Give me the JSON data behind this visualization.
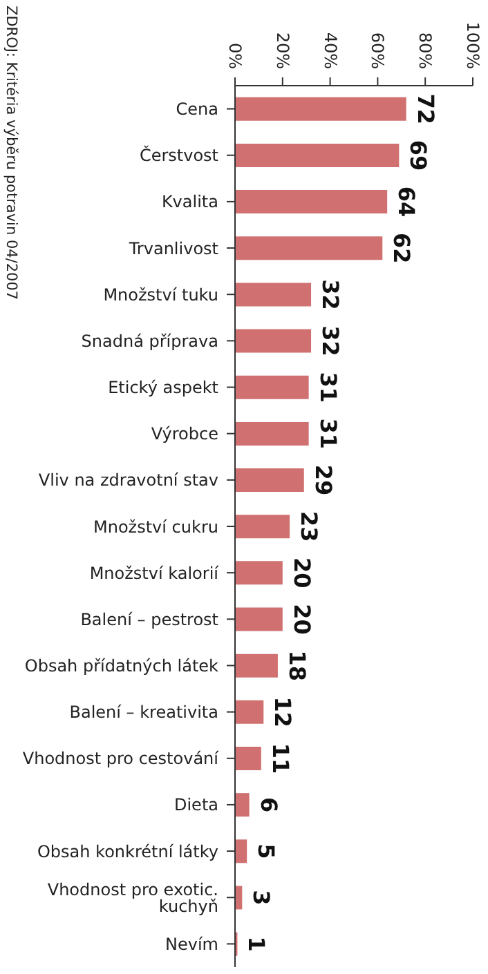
{
  "chart_data": {
    "type": "bar",
    "orientation": "horizontal",
    "categories": [
      "Cena",
      "Čerstvost",
      "Kvalita",
      "Trvanlivost",
      "Množství tuku",
      "Snadná příprava",
      "Etický aspekt",
      "Výrobce",
      "Vliv na zdravotní stav",
      "Množství cukru",
      "Množství kalorií",
      "Balení – pestrost",
      "Obsah přídatných látek",
      "Balení – kreativita",
      "Vhodnost pro cestování",
      "Dieta",
      "Obsah konkrétní látky",
      "Vhodnost pro exotic. kuchyň",
      "Nevím"
    ],
    "values": [
      72,
      69,
      64,
      62,
      32,
      32,
      31,
      31,
      29,
      23,
      20,
      20,
      18,
      12,
      11,
      6,
      5,
      3,
      1
    ],
    "color": "#d07070",
    "xlim": [
      0,
      100
    ],
    "xticks": [
      {
        "value": 0,
        "label": "0%"
      },
      {
        "value": 20,
        "label": "20%"
      },
      {
        "value": 40,
        "label": "40%"
      },
      {
        "value": 60,
        "label": "60%"
      },
      {
        "value": 80,
        "label": "80%"
      },
      {
        "value": 100,
        "label": "100%"
      }
    ],
    "data_labels": true,
    "annotations": [
      "ZDROJ: Kritéria výběru potravin 04/2007"
    ]
  }
}
